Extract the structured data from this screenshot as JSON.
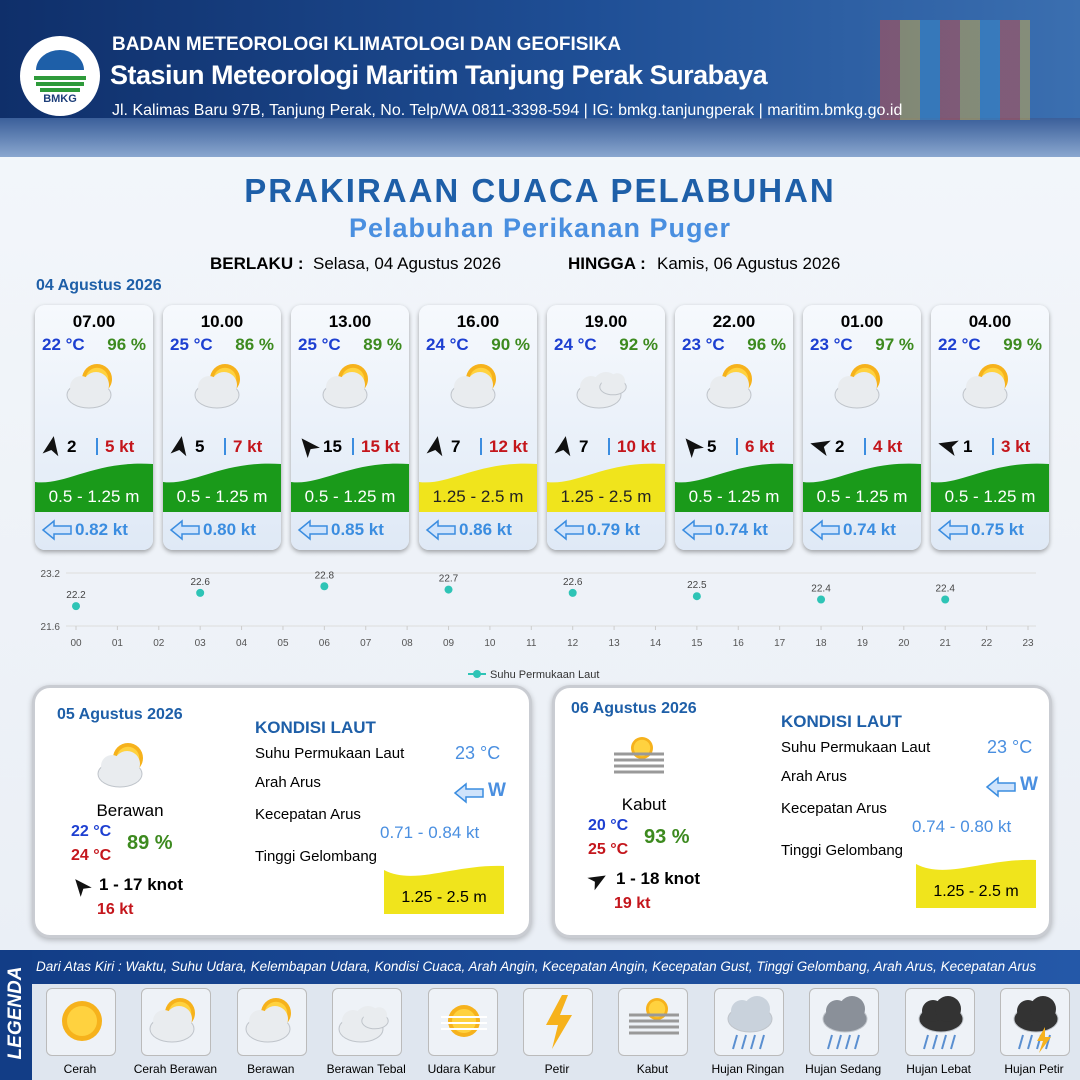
{
  "header": {
    "logo_text": "BMKG",
    "org": "BADAN METEOROLOGI KLIMATOLOGI DAN GEOFISIKA",
    "station": "Stasiun Meteorologi Maritim Tanjung Perak Surabaya",
    "address": "Jl. Kalimas Baru 97B, Tanjung Perak, No. Telp/WA 0811-3398-594 | IG: bmkg.tanjungperak | maritim.bmkg.go.id"
  },
  "title": "PRAKIRAAN CUACA PELABUHAN",
  "subtitle": "Pelabuhan Perikanan Puger",
  "validity": {
    "from_label": "BERLAKU :",
    "from": "Selasa, 04 Agustus 2026",
    "to_label": "HINGGA :",
    "to": "Kamis, 06 Agustus 2026"
  },
  "day1_date": "04 Agustus 2026",
  "forecasts": [
    {
      "time": "07.00",
      "temp": "22 °C",
      "humidity": "96 %",
      "wind": "2",
      "gust": "5 kt",
      "wave": "0.5 - 1.25 m",
      "wave_color": "#1a9a1a",
      "current": "0.82 kt"
    },
    {
      "time": "10.00",
      "temp": "25 °C",
      "humidity": "86 %",
      "wind": "5",
      "gust": "7 kt",
      "wave": "0.5 - 1.25 m",
      "wave_color": "#1a9a1a",
      "current": "0.80 kt"
    },
    {
      "time": "13.00",
      "temp": "25 °C",
      "humidity": "89 %",
      "wind": "15",
      "gust": "15 kt",
      "wave": "0.5 - 1.25 m",
      "wave_color": "#1a9a1a",
      "current": "0.85 kt"
    },
    {
      "time": "16.00",
      "temp": "24 °C",
      "humidity": "90 %",
      "wind": "7",
      "gust": "12 kt",
      "wave": "1.25 - 2.5 m",
      "wave_color": "#f0e41c",
      "current": "0.86 kt"
    },
    {
      "time": "19.00",
      "temp": "24 °C",
      "humidity": "92 %",
      "wind": "7",
      "gust": "10 kt",
      "wave": "1.25 - 2.5 m",
      "wave_color": "#f0e41c",
      "current": "0.79 kt"
    },
    {
      "time": "22.00",
      "temp": "23 °C",
      "humidity": "96 %",
      "wind": "5",
      "gust": "6 kt",
      "wave": "0.5 - 1.25 m",
      "wave_color": "#1a9a1a",
      "current": "0.74 kt"
    },
    {
      "time": "01.00",
      "temp": "23 °C",
      "humidity": "97 %",
      "wind": "2",
      "gust": "4 kt",
      "wave": "0.5 - 1.25 m",
      "wave_color": "#1a9a1a",
      "current": "0.74 kt"
    },
    {
      "time": "04.00",
      "temp": "22 °C",
      "humidity": "99 %",
      "wind": "1",
      "gust": "3 kt",
      "wave": "0.5 - 1.25 m",
      "wave_color": "#1a9a1a",
      "current": "0.75 kt"
    }
  ],
  "chart_data": {
    "type": "scatter",
    "x": [
      0,
      3,
      6,
      9,
      12,
      15,
      18,
      21
    ],
    "series": [
      {
        "name": "Suhu Permukaan Laut",
        "color": "#2ec4b6",
        "values": [
          22.2,
          22.6,
          22.8,
          22.7,
          22.6,
          22.5,
          22.4,
          22.4
        ]
      }
    ],
    "xlim": [
      0,
      23
    ],
    "xticks": [
      {
        "value": 0,
        "label": "00"
      },
      {
        "value": 1,
        "label": "01"
      },
      {
        "value": 2,
        "label": "02"
      },
      {
        "value": 3,
        "label": "03"
      },
      {
        "value": 4,
        "label": "04"
      },
      {
        "value": 5,
        "label": "05"
      },
      {
        "value": 6,
        "label": "06"
      },
      {
        "value": 7,
        "label": "07"
      },
      {
        "value": 8,
        "label": "08"
      },
      {
        "value": 9,
        "label": "09"
      },
      10,
      11,
      12,
      13,
      14,
      15,
      16,
      17,
      18,
      19,
      20,
      21,
      22,
      23
    ],
    "ylim": [
      21.6,
      23.2
    ],
    "yticks": [
      21.6,
      23.2
    ],
    "grid": true,
    "legend": "bottom"
  },
  "days": [
    {
      "date": "05 Agustus 2026",
      "condition": "Berawan",
      "temp_min": "22 °C",
      "temp_max": "24 °C",
      "humidity": "89 %",
      "wind": "1  - 17 knot",
      "gust": "16 kt",
      "kondisi_title": "KONDISI LAUT",
      "labels": [
        "Suhu Permukaan Laut",
        "Arah Arus",
        "Kecepatan Arus",
        "Tinggi Gelombang"
      ],
      "sst": "23 °C",
      "current_dir": "W",
      "current_speed": "0.71  - 0.84 kt",
      "wave": "1.25 - 2.5 m"
    },
    {
      "date": "06 Agustus 2026",
      "condition": "Kabut",
      "temp_min": "20 °C",
      "temp_max": "25 °C",
      "humidity": "93 %",
      "wind": "1  - 18 knot",
      "gust": "19 kt",
      "kondisi_title": "KONDISI LAUT",
      "labels": [
        "Suhu Permukaan Laut",
        "Arah Arus",
        "Kecepatan Arus",
        "Tinggi Gelombang"
      ],
      "sst": "23 °C",
      "current_dir": "W",
      "current_speed": "0.74 - 0.80 kt",
      "wave": "1.25 - 2.5 m"
    }
  ],
  "legend": {
    "title": "LEGENDA",
    "description": "Dari Atas Kiri : Waktu, Suhu Udara, Kelembapan Udara, Kondisi Cuaca, Arah Angin, Kecepatan Angin, Kecepatan Gust, Tinggi Gelombang, Arah Arus, Kecepatan Arus",
    "items": [
      "Cerah",
      "Cerah Berawan",
      "Berawan",
      "Berawan Tebal",
      "Udara Kabur",
      "Petir",
      "Kabut",
      "Hujan Ringan",
      "Hujan Sedang",
      "Hujan Lebat",
      "Hujan Petir"
    ]
  }
}
